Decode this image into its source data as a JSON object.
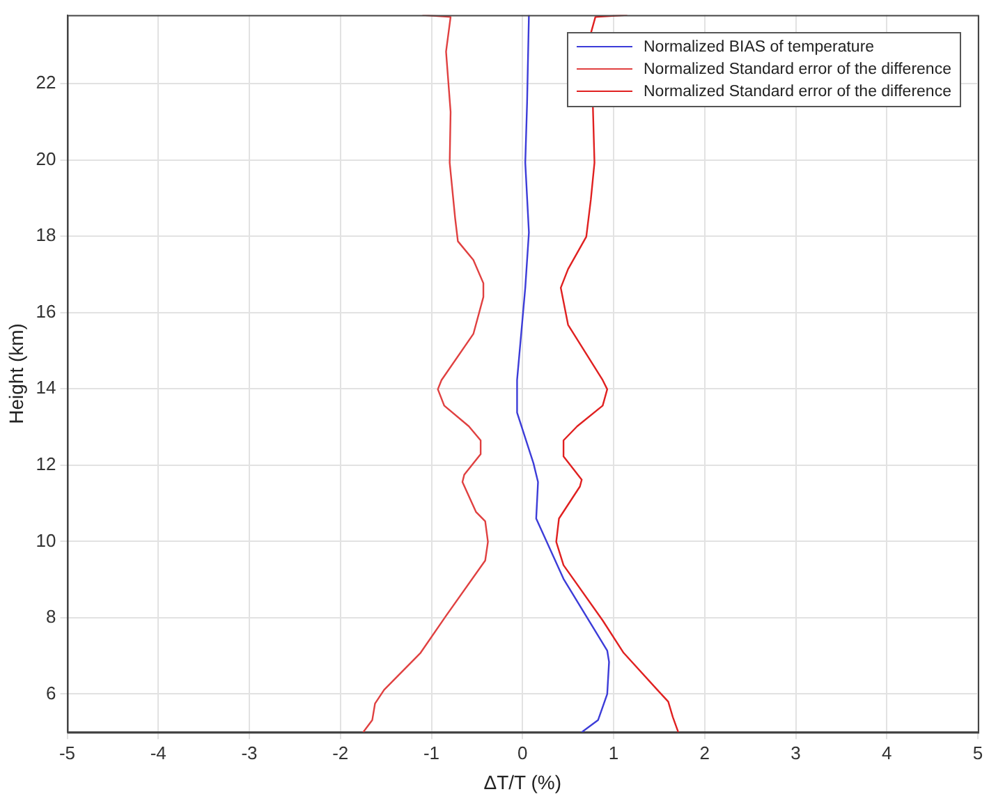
{
  "chart_data": {
    "type": "line",
    "xlabel": "ΔT/T (%)",
    "ylabel": "Height (km)",
    "xlim": [
      -5,
      5
    ],
    "xticks": [
      -5,
      -4,
      -3,
      -2,
      -1,
      0,
      1,
      2,
      3,
      4,
      5
    ],
    "ylim": [
      5,
      23.8
    ],
    "yticks": [
      6,
      8,
      10,
      12,
      14,
      16,
      18,
      20,
      22
    ],
    "grid": true,
    "legend": "top right",
    "marker": "none",
    "line_style": "solid",
    "series": [
      {
        "name": "Normalized BIAS of temperature",
        "color": "#3c3cd8",
        "x": [
          0.65,
          0.83,
          0.93,
          0.95,
          0.93,
          0.45,
          0.15,
          0.17,
          0.12,
          -0.06,
          -0.06,
          0.03,
          0.07,
          0.03,
          0.05,
          0.07
        ],
        "values": [
          5.0,
          5.32,
          6.0,
          6.84,
          7.14,
          9.02,
          10.6,
          11.56,
          12.05,
          13.38,
          14.23,
          16.65,
          18.1,
          19.93,
          21.5,
          23.8
        ]
      },
      {
        "name": "Normalized Standard error of the difference",
        "color": "#e04040",
        "x": [
          -1.75,
          -1.65,
          -1.62,
          -1.52,
          -1.12,
          -0.84,
          -0.41,
          -0.38,
          -0.41,
          -0.51,
          -0.66,
          -0.64,
          -0.46,
          -0.46,
          -0.59,
          -0.86,
          -0.93,
          -0.89,
          -0.54,
          -0.43,
          -0.43,
          -0.54,
          -0.71,
          -0.74,
          -0.8,
          -0.79,
          -0.84,
          -0.79,
          -1.1
        ],
        "values": [
          5.0,
          5.32,
          5.75,
          6.11,
          7.08,
          8.05,
          9.5,
          9.99,
          10.53,
          10.77,
          11.56,
          11.75,
          12.29,
          12.65,
          13.02,
          13.56,
          13.99,
          14.23,
          15.44,
          16.41,
          16.77,
          17.38,
          17.87,
          18.47,
          19.93,
          21.26,
          22.84,
          23.75,
          23.8
        ]
      },
      {
        "name": "Normalized Standard error of the difference",
        "color": "#e02020",
        "x": [
          1.71,
          1.65,
          1.6,
          1.48,
          1.11,
          0.88,
          0.45,
          0.37,
          0.4,
          0.63,
          0.65,
          0.45,
          0.45,
          0.6,
          0.88,
          0.93,
          0.88,
          0.5,
          0.42,
          0.5,
          0.7,
          0.75,
          0.79,
          0.75,
          0.8,
          1.15
        ],
        "values": [
          5.0,
          5.4,
          5.8,
          6.11,
          7.08,
          7.93,
          9.38,
          9.99,
          10.6,
          11.44,
          11.62,
          12.23,
          12.65,
          13.02,
          13.56,
          13.99,
          14.23,
          15.68,
          16.65,
          17.14,
          17.99,
          18.96,
          19.93,
          23.32,
          23.75,
          23.8
        ]
      }
    ]
  }
}
